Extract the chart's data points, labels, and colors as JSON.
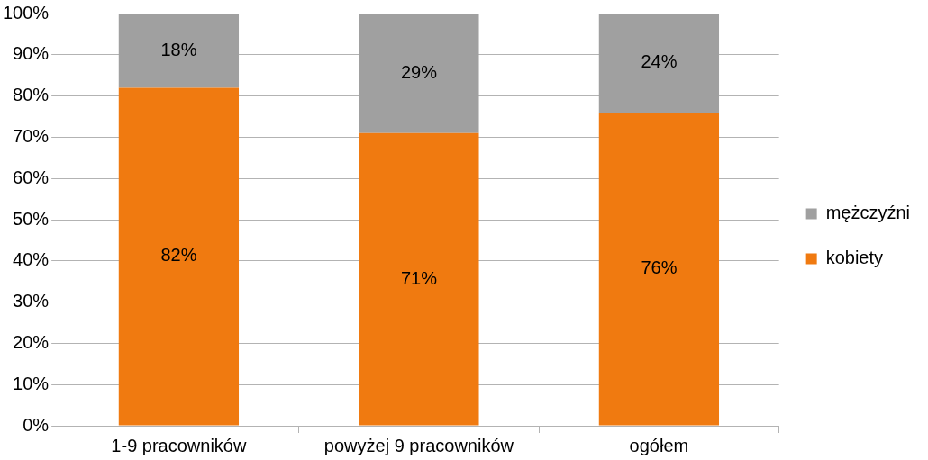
{
  "chart_data": {
    "type": "bar",
    "stacked": true,
    "categories": [
      "1-9 pracowników",
      "powyżej 9 pracowników",
      "ogółem"
    ],
    "series": [
      {
        "name": "kobiety",
        "color": "#f07a10",
        "values": [
          82,
          71,
          76
        ],
        "value_labels": [
          "82%",
          "71%",
          "76%"
        ]
      },
      {
        "name": "mężczyźni",
        "color": "#a0a0a0",
        "values": [
          18,
          29,
          24
        ],
        "value_labels": [
          "18%",
          "29%",
          "24%"
        ]
      }
    ],
    "ylim": [
      0,
      100
    ],
    "yticks": [
      {
        "value": 0,
        "label": "0%"
      },
      {
        "value": 10,
        "label": "10%"
      },
      {
        "value": 20,
        "label": "20%"
      },
      {
        "value": 30,
        "label": "30%"
      },
      {
        "value": 40,
        "label": "40%"
      },
      {
        "value": 50,
        "label": "50%"
      },
      {
        "value": 60,
        "label": "60%"
      },
      {
        "value": 70,
        "label": "70%"
      },
      {
        "value": 80,
        "label": "80%"
      },
      {
        "value": 90,
        "label": "90%"
      },
      {
        "value": 100,
        "label": "100%"
      }
    ],
    "grid": "y",
    "legend": "right"
  }
}
